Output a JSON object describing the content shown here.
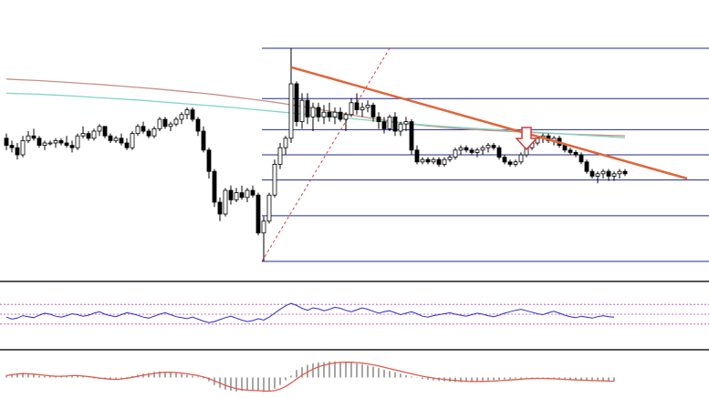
{
  "colors": {
    "background": "#ffffff",
    "candle_up_fill": "#ffffff",
    "candle_down_fill": "#000000",
    "candle_outline": "#000000",
    "fib_lines": "#1f2a8c",
    "fib_diagonal": "#d23a3a",
    "trend_line": "#e0653a",
    "ma_fast": "#7fd6c4",
    "ma_slow": "#c98f86",
    "rsi_line": "#2b2bd6",
    "rsi_levels": "#c040c0",
    "panel_separator": "#555555",
    "macd_hist": "#a6a6a6",
    "macd_signal": "#e05a4a",
    "arrow": "#d23a3a"
  },
  "icons": {
    "down_arrow": "down-arrow-icon"
  },
  "chart_data": [
    {
      "type": "candlestick",
      "panel": "price",
      "title": "",
      "grid": false,
      "ylim": [
        0,
        100
      ],
      "candles": [
        [
          57,
          59,
          52,
          54
        ],
        [
          54,
          56,
          51,
          53
        ],
        [
          53,
          55,
          48,
          50
        ],
        [
          50,
          58,
          49,
          56
        ],
        [
          56,
          60,
          55,
          58
        ],
        [
          58,
          61,
          56,
          57
        ],
        [
          57,
          58,
          53,
          54
        ],
        [
          54,
          56,
          52,
          55
        ],
        [
          55,
          56,
          54,
          55
        ],
        [
          55,
          57,
          53,
          56
        ],
        [
          56,
          57,
          54,
          55
        ],
        [
          55,
          58,
          53,
          54
        ],
        [
          54,
          56,
          51,
          53
        ],
        [
          53,
          59,
          52,
          58
        ],
        [
          58,
          62,
          57,
          59
        ],
        [
          59,
          60,
          56,
          57
        ],
        [
          57,
          61,
          56,
          60
        ],
        [
          60,
          63,
          58,
          62
        ],
        [
          62,
          62,
          57,
          58
        ],
        [
          58,
          59,
          55,
          56
        ],
        [
          56,
          58,
          55,
          57
        ],
        [
          57,
          59,
          54,
          55
        ],
        [
          55,
          57,
          52,
          53
        ],
        [
          53,
          60,
          52,
          59
        ],
        [
          59,
          63,
          58,
          62
        ],
        [
          62,
          64,
          59,
          60
        ],
        [
          60,
          61,
          57,
          58
        ],
        [
          58,
          62,
          57,
          61
        ],
        [
          61,
          66,
          60,
          65
        ],
        [
          65,
          66,
          61,
          62
        ],
        [
          62,
          64,
          60,
          63
        ],
        [
          63,
          66,
          62,
          65
        ],
        [
          65,
          68,
          63,
          67
        ],
        [
          67,
          70,
          65,
          69
        ],
        [
          69,
          70,
          64,
          65
        ],
        [
          65,
          66,
          58,
          60
        ],
        [
          60,
          62,
          51,
          52
        ],
        [
          52,
          53,
          40,
          43
        ],
        [
          43,
          44,
          28,
          30
        ],
        [
          30,
          32,
          22,
          25
        ],
        [
          25,
          36,
          24,
          35
        ],
        [
          35,
          37,
          29,
          31
        ],
        [
          31,
          36,
          30,
          34
        ],
        [
          34,
          37,
          31,
          32
        ],
        [
          32,
          36,
          30,
          35
        ],
        [
          35,
          37,
          32,
          33
        ],
        [
          33,
          34,
          16,
          17
        ],
        [
          17,
          24,
          5,
          22
        ],
        [
          22,
          34,
          21,
          33
        ],
        [
          33,
          48,
          32,
          46
        ],
        [
          46,
          55,
          44,
          53
        ],
        [
          53,
          58,
          50,
          57
        ],
        [
          57,
          95,
          55,
          80
        ],
        [
          80,
          81,
          62,
          64
        ],
        [
          64,
          76,
          61,
          73
        ],
        [
          73,
          76,
          63,
          66
        ],
        [
          66,
          72,
          60,
          70
        ],
        [
          70,
          72,
          64,
          66
        ],
        [
          66,
          71,
          63,
          68
        ],
        [
          68,
          72,
          64,
          66
        ],
        [
          66,
          70,
          63,
          68
        ],
        [
          68,
          70,
          64,
          65
        ],
        [
          65,
          68,
          60,
          67
        ],
        [
          67,
          74,
          66,
          72
        ],
        [
          72,
          76,
          67,
          69
        ],
        [
          69,
          72,
          66,
          70
        ],
        [
          70,
          73,
          68,
          71
        ],
        [
          71,
          72,
          64,
          66
        ],
        [
          66,
          68,
          61,
          64
        ],
        [
          64,
          66,
          59,
          61
        ],
        [
          61,
          67,
          60,
          66
        ],
        [
          66,
          68,
          58,
          60
        ],
        [
          60,
          64,
          58,
          63
        ],
        [
          63,
          66,
          60,
          64
        ],
        [
          64,
          65,
          50,
          52
        ],
        [
          52,
          54,
          46,
          47
        ],
        [
          47,
          49,
          46,
          48
        ],
        [
          48,
          49,
          46,
          47
        ],
        [
          47,
          49,
          46,
          48
        ],
        [
          48,
          49,
          45,
          46
        ],
        [
          46,
          49,
          45,
          48
        ],
        [
          48,
          50,
          47,
          49
        ],
        [
          49,
          53,
          48,
          52
        ],
        [
          52,
          54,
          50,
          53
        ],
        [
          53,
          54,
          51,
          52
        ],
        [
          52,
          53,
          50,
          51
        ],
        [
          51,
          53,
          49,
          52
        ],
        [
          52,
          54,
          50,
          53
        ],
        [
          53,
          55,
          51,
          54
        ],
        [
          54,
          55,
          52,
          53
        ],
        [
          53,
          54,
          48,
          49
        ],
        [
          49,
          50,
          46,
          47
        ],
        [
          47,
          48,
          45,
          46
        ],
        [
          46,
          48,
          45,
          47
        ],
        [
          47,
          51,
          46,
          50
        ],
        [
          50,
          54,
          49,
          53
        ],
        [
          53,
          56,
          52,
          55
        ],
        [
          55,
          58,
          54,
          57
        ],
        [
          57,
          59,
          55,
          58
        ],
        [
          58,
          59,
          55,
          56
        ],
        [
          56,
          58,
          54,
          57
        ],
        [
          57,
          58,
          53,
          54
        ],
        [
          54,
          55,
          51,
          52
        ],
        [
          52,
          53,
          50,
          51
        ],
        [
          51,
          52,
          49,
          50
        ],
        [
          50,
          51,
          46,
          47
        ],
        [
          47,
          48,
          42,
          43
        ],
        [
          43,
          44,
          40,
          41
        ],
        [
          41,
          43,
          38,
          42
        ],
        [
          42,
          44,
          40,
          43
        ],
        [
          43,
          44,
          39,
          41
        ],
        [
          41,
          43,
          39,
          42
        ],
        [
          42,
          44,
          40,
          43
        ],
        [
          43,
          44,
          41,
          42
        ]
      ],
      "moving_averages": [
        {
          "values": [
            82,
            81.7,
            81.4,
            81,
            80.6,
            80.2,
            79.8,
            79.3,
            78.8,
            78.3,
            77.8,
            77.2,
            76.6,
            76,
            75.3,
            74.5,
            73.7,
            72.9,
            72,
            71,
            70,
            68.9,
            67.8,
            66.7,
            65.6,
            64.6,
            63.7,
            62.9,
            62.2,
            61.6,
            61.1,
            60.7,
            60.3,
            60,
            59.7,
            59.4,
            59.1,
            58.8,
            58.6,
            58.4,
            58.2,
            58
          ]
        },
        {
          "values": [
            76,
            75.8,
            75.6,
            75.3,
            75,
            74.6,
            74.2,
            73.8,
            73.4,
            73,
            72.5,
            72,
            71.5,
            71,
            70.5,
            70,
            69.4,
            68.8,
            68.2,
            67.6,
            67,
            66.4,
            65.8,
            65.2,
            64.6,
            64,
            63.5,
            63,
            62.5,
            62,
            61.6,
            61.2,
            60.8,
            60.4,
            60,
            59.6,
            59.2,
            58.8,
            58.4,
            58,
            57.6,
            57.2
          ]
        }
      ],
      "trend_line": [
        [
          52,
          87
        ],
        [
          121,
          40
        ]
      ],
      "fib_levels": [
        0.236,
        0.382,
        0.5,
        0.618,
        0.786,
        1
      ],
      "fib_range": [
        5,
        95
      ],
      "fib_start": 47
    },
    {
      "type": "line",
      "panel": "rsi",
      "ylim": [
        0,
        100
      ],
      "levels": [
        30,
        50,
        70
      ],
      "values": [
        44,
        40,
        42,
        47,
        45,
        43,
        48,
        52,
        50,
        46,
        44,
        47,
        51,
        49,
        46,
        48,
        52,
        55,
        50,
        47,
        45,
        49,
        53,
        51,
        48,
        44,
        42,
        46,
        50,
        53,
        49,
        45,
        43,
        41,
        44,
        40,
        36,
        33,
        35,
        39,
        43,
        46,
        42,
        38,
        35,
        37,
        41,
        38,
        44,
        52,
        60,
        67,
        72,
        68,
        62,
        58,
        63,
        61,
        57,
        60,
        64,
        62,
        58,
        55,
        59,
        63,
        60,
        56,
        52,
        55,
        57,
        53,
        49,
        52,
        55,
        51,
        46,
        44,
        47,
        49,
        51,
        53,
        50,
        48,
        46,
        49,
        52,
        50,
        47,
        45,
        48,
        52,
        55,
        58,
        60,
        57,
        54,
        51,
        49,
        53,
        56,
        52,
        48,
        45,
        43,
        46,
        44,
        42,
        45,
        47,
        45,
        44
      ]
    },
    {
      "type": "bar",
      "panel": "macd",
      "ylim": [
        -1,
        1
      ],
      "values": [
        0.12,
        0.18,
        0.22,
        0.25,
        0.2,
        0.15,
        0.1,
        0.08,
        0.06,
        0.05,
        0.08,
        0.1,
        0.12,
        0.1,
        0.05,
        0.02,
        -0.05,
        -0.08,
        -0.1,
        -0.12,
        -0.1,
        -0.05,
        0.02,
        0.08,
        0.15,
        0.2,
        0.25,
        0.3,
        0.32,
        0.3,
        0.28,
        0.25,
        0.2,
        0.15,
        0.1,
        0.05,
        -0.05,
        -0.2,
        -0.4,
        -0.55,
        -0.65,
        -0.7,
        -0.75,
        -0.72,
        -0.7,
        -0.68,
        -0.72,
        -0.78,
        -0.74,
        -0.6,
        -0.4,
        -0.15,
        0.1,
        0.4,
        0.55,
        0.68,
        0.75,
        0.8,
        0.82,
        0.85,
        0.86,
        0.84,
        0.82,
        0.8,
        0.75,
        0.7,
        0.65,
        0.58,
        0.5,
        0.42,
        0.35,
        0.28,
        0.2,
        0.12,
        0.05,
        -0.02,
        -0.08,
        -0.12,
        -0.15,
        -0.18,
        -0.2,
        -0.22,
        -0.24,
        -0.25,
        -0.24,
        -0.22,
        -0.2,
        -0.18,
        -0.16,
        -0.14,
        -0.12,
        -0.1,
        -0.08,
        -0.06,
        -0.05,
        -0.04,
        -0.03,
        -0.02,
        -0.04,
        -0.06,
        -0.08,
        -0.1,
        -0.12,
        -0.14,
        -0.15,
        -0.16,
        -0.17,
        -0.18,
        -0.19,
        -0.2,
        -0.2,
        -0.21
      ],
      "signal": [
        0.1,
        0.15,
        0.19,
        0.21,
        0.2,
        0.18,
        0.15,
        0.12,
        0.09,
        0.07,
        0.07,
        0.08,
        0.1,
        0.1,
        0.08,
        0.05,
        0.01,
        -0.03,
        -0.06,
        -0.09,
        -0.1,
        -0.08,
        -0.04,
        0.01,
        0.07,
        0.12,
        0.17,
        0.22,
        0.26,
        0.28,
        0.28,
        0.27,
        0.24,
        0.2,
        0.15,
        0.1,
        0.03,
        -0.06,
        -0.18,
        -0.3,
        -0.42,
        -0.52,
        -0.6,
        -0.65,
        -0.68,
        -0.69,
        -0.7,
        -0.72,
        -0.73,
        -0.7,
        -0.62,
        -0.48,
        -0.3,
        -0.08,
        0.12,
        0.3,
        0.45,
        0.57,
        0.66,
        0.73,
        0.78,
        0.81,
        0.82,
        0.82,
        0.8,
        0.77,
        0.73,
        0.68,
        0.62,
        0.55,
        0.48,
        0.41,
        0.34,
        0.27,
        0.2,
        0.13,
        0.07,
        0.02,
        -0.03,
        -0.07,
        -0.1,
        -0.13,
        -0.16,
        -0.18,
        -0.2,
        -0.21,
        -0.21,
        -0.21,
        -0.2,
        -0.19,
        -0.17,
        -0.15,
        -0.13,
        -0.11,
        -0.09,
        -0.07,
        -0.06,
        -0.05,
        -0.05,
        -0.06,
        -0.07,
        -0.08,
        -0.1,
        -0.11,
        -0.13,
        -0.14,
        -0.15,
        -0.16,
        -0.17,
        -0.18,
        -0.19,
        -0.2
      ]
    }
  ]
}
